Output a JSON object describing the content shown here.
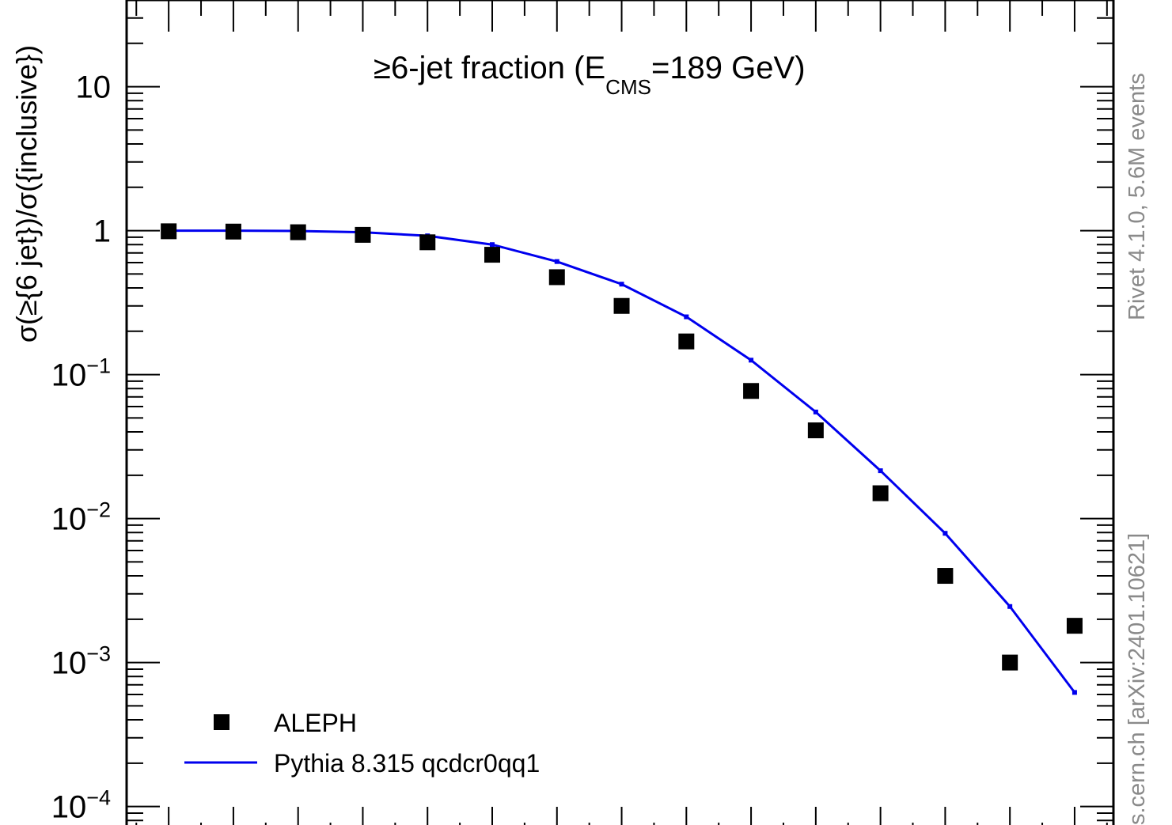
{
  "chart_data": {
    "type": "scatter",
    "title": "≥6-jet fraction (E",
    "title_subscript": "CMS",
    "title_tail": "=189 GeV)",
    "ylabel": "σ(≥{6 jet})/σ({inclusive})",
    "xlabel": "",
    "yscale": "log",
    "ylim": [
      6e-05,
      40
    ],
    "xlim": [
      -0.65,
      14.6
    ],
    "grid": false,
    "legend_position": "bottom-left",
    "y_tick_labels": [
      {
        "value": 10,
        "base": "10",
        "exp": ""
      },
      {
        "value": 1,
        "base": "1",
        "exp": ""
      },
      {
        "value": 0.1,
        "base": "10",
        "exp": "−1"
      },
      {
        "value": 0.01,
        "base": "10",
        "exp": "−2"
      },
      {
        "value": 0.001,
        "base": "10",
        "exp": "−3"
      },
      {
        "value": 0.0001,
        "base": "10",
        "exp": "−4"
      }
    ],
    "series": [
      {
        "name": "ALEPH",
        "kind": "markers",
        "color": "#000000",
        "x": [
          0,
          1,
          2,
          3,
          4,
          5,
          6,
          7,
          8,
          9,
          10,
          11,
          12,
          13,
          14
        ],
        "values": [
          0.99,
          0.985,
          0.975,
          0.935,
          0.83,
          0.68,
          0.475,
          0.3,
          0.17,
          0.077,
          0.041,
          0.015,
          0.004,
          0.001,
          0.0018
        ]
      },
      {
        "name": "Pythia 8.315 qcdcr0qq1",
        "kind": "line",
        "color": "#0000ee",
        "x": [
          0,
          1,
          2,
          3,
          4,
          5,
          6,
          7,
          8,
          9,
          10,
          11,
          12,
          13,
          14
        ],
        "values": [
          1.0,
          0.999,
          0.995,
          0.975,
          0.92,
          0.8,
          0.61,
          0.425,
          0.252,
          0.126,
          0.055,
          0.0215,
          0.0079,
          0.00245,
          0.00062
        ]
      }
    ]
  },
  "side_text": {
    "rivet": "Rivet 4.1.0,  5.6M events",
    "source": "s.cern.ch [arXiv:2401.10621]"
  }
}
